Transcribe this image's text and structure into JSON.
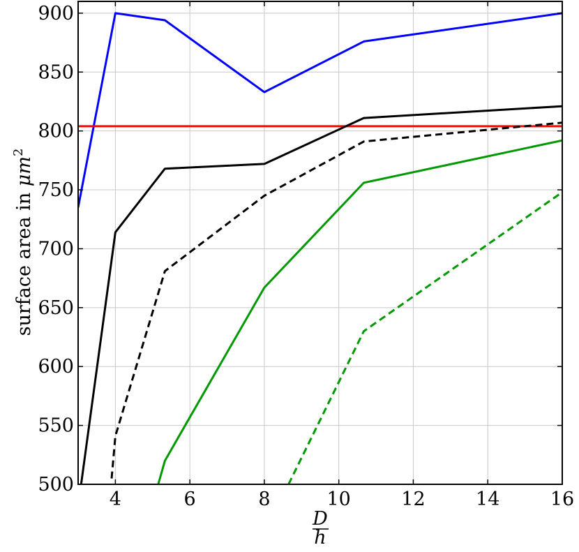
{
  "chart_data": {
    "type": "line",
    "title": "",
    "xlabel": {
      "numerator": "D",
      "denominator": "h"
    },
    "ylabel": {
      "text": "surface area in ",
      "unit_base": "μm",
      "unit_exp": "2"
    },
    "xlim": [
      3,
      16
    ],
    "ylim": [
      500,
      910
    ],
    "xticks": [
      4,
      6,
      8,
      10,
      12,
      14,
      16
    ],
    "yticks": [
      500,
      550,
      600,
      650,
      700,
      750,
      800,
      850,
      900
    ],
    "grid": true,
    "series": [
      {
        "color": "#0000ff",
        "dash": "solid",
        "x": [
          3,
          4,
          5.33,
          8,
          10.67,
          16
        ],
        "y": [
          735,
          900,
          894,
          833,
          876,
          900
        ]
      },
      {
        "color": "#ff0000",
        "dash": "solid",
        "x": [
          3,
          16
        ],
        "y": [
          804,
          804
        ]
      },
      {
        "color": "#000000",
        "dash": "solid",
        "x": [
          3.08,
          4,
          5.33,
          8,
          10.67,
          16
        ],
        "y": [
          500,
          714,
          768,
          772,
          811,
          821
        ]
      },
      {
        "color": "#000000",
        "dash": "dashed",
        "x": [
          3.9,
          4,
          5.33,
          8,
          10.67,
          16
        ],
        "y": [
          505,
          541,
          681,
          745,
          791,
          807
        ]
      },
      {
        "color": "#009900",
        "dash": "solid",
        "x": [
          5.15,
          5.33,
          8,
          10.67,
          16
        ],
        "y": [
          500,
          520,
          667,
          756,
          792
        ]
      },
      {
        "color": "#009900",
        "dash": "dashed",
        "x": [
          8.65,
          10.67,
          16
        ],
        "y": [
          500,
          630,
          748
        ]
      }
    ]
  }
}
